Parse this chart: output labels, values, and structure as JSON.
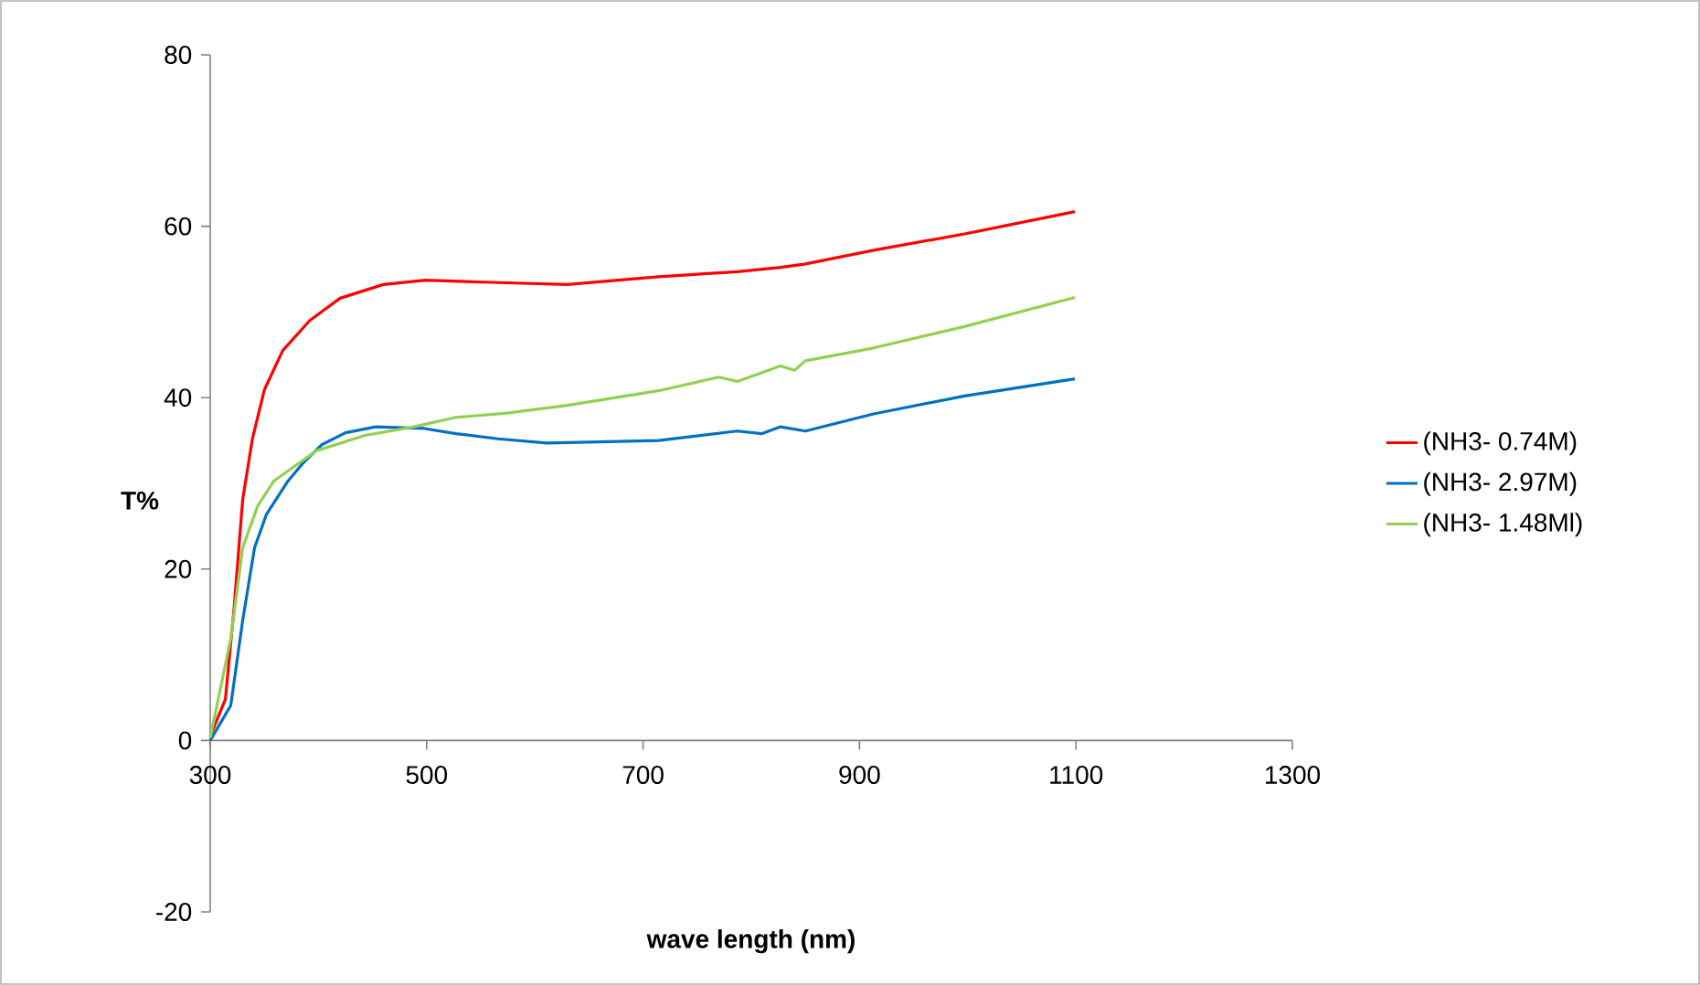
{
  "chart_data": {
    "type": "line",
    "xlabel": "wave length (nm)",
    "ylabel": "T%",
    "xlim": [
      300,
      1300
    ],
    "xticks": [
      300,
      500,
      700,
      900,
      1100,
      1300
    ],
    "ylim": [
      -20,
      80
    ],
    "yticks": [
      -20,
      0,
      20,
      40,
      60,
      80
    ],
    "grid": false,
    "legend": "right",
    "marker": "none",
    "line_style": "solid",
    "series": [
      {
        "name": "(NH3- 0.74M)",
        "color": "#ff0000",
        "x": [
          300,
          314,
          322,
          330,
          339,
          350,
          367,
          392,
          420,
          460,
          499,
          574,
          630,
          714,
          787,
          827,
          850,
          913,
          997,
          1099
        ],
        "values": [
          0.5,
          4.8,
          15.4,
          28.1,
          35.2,
          40.9,
          45.5,
          49.0,
          51.6,
          53.2,
          53.7,
          53.4,
          53.2,
          54.1,
          54.7,
          55.2,
          55.6,
          57.2,
          59.1,
          61.7
        ]
      },
      {
        "name": "(NH3- 2.97M)",
        "color": "#0070c0",
        "x": [
          300,
          319,
          330,
          341,
          352,
          372,
          386,
          403,
          425,
          453,
          498,
          527,
          566,
          611,
          714,
          787,
          810,
          827,
          850,
          913,
          997,
          1099
        ],
        "values": [
          0,
          4.1,
          14.0,
          22.5,
          26.4,
          30.3,
          32.4,
          34.5,
          35.9,
          36.6,
          36.4,
          35.8,
          35.2,
          34.7,
          35.0,
          36.1,
          35.8,
          36.6,
          36.1,
          38.1,
          40.2,
          42.2
        ]
      },
      {
        "name": "(NH3- 1.48Ml)",
        "color": "#92d050",
        "x": [
          300,
          319,
          330,
          344,
          359,
          378,
          398,
          443,
          488,
          527,
          574,
          630,
          714,
          770,
          787,
          827,
          840,
          850,
          913,
          997,
          1099
        ],
        "values": [
          0.3,
          11.9,
          22.5,
          27.4,
          30.3,
          32.0,
          33.8,
          35.6,
          36.6,
          37.7,
          38.2,
          39.1,
          40.8,
          42.4,
          41.9,
          43.7,
          43.2,
          44.3,
          45.8,
          48.3,
          51.7
        ]
      }
    ]
  }
}
